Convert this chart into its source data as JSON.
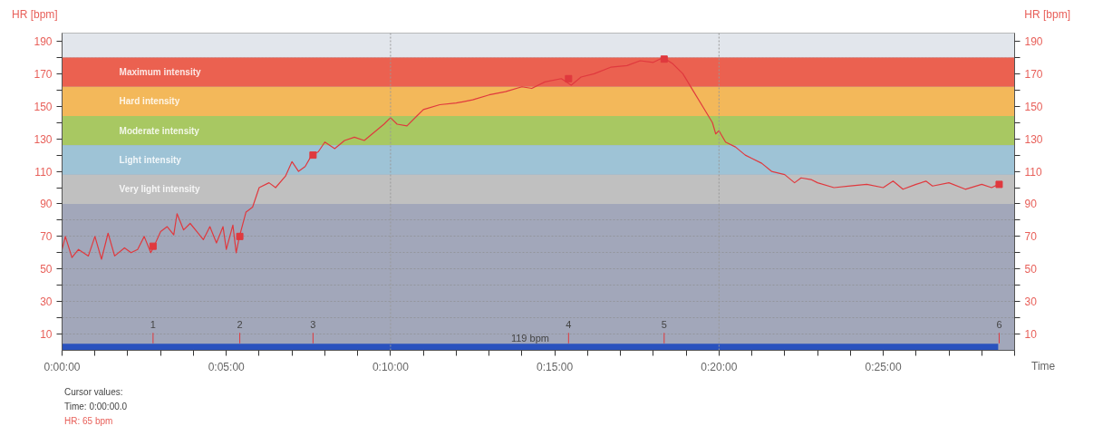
{
  "chart_data": {
    "type": "line",
    "ylabel": "HR [bpm]",
    "y2label": "HR [bpm]",
    "xlabel": "Time",
    "xlim": [
      0,
      29
    ],
    "xticks": [
      {
        "value": 0,
        "label": "0:00:00"
      },
      {
        "value": 1,
        "label": null
      },
      {
        "value": 2,
        "label": null
      },
      {
        "value": 3,
        "label": null
      },
      {
        "value": 4,
        "label": null
      },
      {
        "value": 5,
        "label": "0:05:00"
      },
      {
        "value": 6,
        "label": null
      },
      {
        "value": 7,
        "label": null
      },
      {
        "value": 8,
        "label": null
      },
      {
        "value": 9,
        "label": null
      },
      {
        "value": 10,
        "label": "0:10:00"
      },
      {
        "value": 11,
        "label": null
      },
      {
        "value": 12,
        "label": null
      },
      {
        "value": 13,
        "label": null
      },
      {
        "value": 14,
        "label": null
      },
      {
        "value": 15,
        "label": "0:15:00"
      },
      {
        "value": 16,
        "label": null
      },
      {
        "value": 17,
        "label": null
      },
      {
        "value": 18,
        "label": null
      },
      {
        "value": 19,
        "label": null
      },
      {
        "value": 20,
        "label": "0:20:00"
      },
      {
        "value": 21,
        "label": null
      },
      {
        "value": 22,
        "label": null
      },
      {
        "value": 23,
        "label": null
      },
      {
        "value": 24,
        "label": null
      },
      {
        "value": 25,
        "label": "0:25:00"
      },
      {
        "value": 26,
        "label": null
      },
      {
        "value": 27,
        "label": null
      },
      {
        "value": 28,
        "label": null
      },
      {
        "value": 29,
        "label": null
      }
    ],
    "ylim": [
      0,
      195
    ],
    "yticks": [
      10,
      {
        "value": 20,
        "label": null
      },
      30,
      {
        "value": 40,
        "label": null
      },
      50,
      {
        "value": 60,
        "label": null
      },
      70,
      {
        "value": 80,
        "label": null
      },
      90,
      {
        "value": 100,
        "label": null
      },
      110,
      {
        "value": 120,
        "label": null
      },
      130,
      {
        "value": 140,
        "label": null
      },
      150,
      {
        "value": 160,
        "label": null
      },
      170,
      {
        "value": 180,
        "label": null
      },
      190
    ],
    "y2lim": [
      0,
      195
    ],
    "y2ticks": [
      10,
      {
        "value": 20,
        "label": null
      },
      30,
      {
        "value": 40,
        "label": null
      },
      50,
      {
        "value": 60,
        "label": null
      },
      70,
      {
        "value": 80,
        "label": null
      },
      90,
      {
        "value": 100,
        "label": null
      },
      110,
      {
        "value": 120,
        "label": null
      },
      130,
      {
        "value": 140,
        "label": null
      },
      150,
      {
        "value": 160,
        "label": null
      },
      170,
      {
        "value": 180,
        "label": null
      },
      190
    ],
    "grid": "y",
    "line_style": "solid",
    "marker": "none",
    "series": [
      {
        "color": "#e0393e",
        "x": [
          0,
          0.1,
          0.3,
          0.5,
          0.8,
          1.0,
          1.2,
          1.4,
          1.6,
          1.9,
          2.1,
          2.3,
          2.5,
          2.7,
          2.8,
          3.0,
          3.2,
          3.4,
          3.5,
          3.7,
          3.9,
          4.1,
          4.3,
          4.5,
          4.7,
          4.9,
          5.0,
          5.2,
          5.3,
          5.4,
          5.6,
          5.8,
          6.0,
          6.3,
          6.5,
          6.8,
          7.0,
          7.2,
          7.4,
          7.6,
          7.8,
          8.0,
          8.3,
          8.6,
          8.9,
          9.2,
          9.5,
          9.8,
          10.0,
          10.2,
          10.5,
          10.8,
          11.0,
          11.5,
          12.0,
          12.5,
          13.0,
          13.5,
          14.0,
          14.3,
          14.7,
          15.2,
          15.5,
          15.8,
          16.2,
          16.7,
          17.2,
          17.6,
          18.0,
          18.3,
          18.6,
          18.9,
          19.2,
          19.5,
          19.8,
          19.9,
          20.0,
          20.2,
          20.5,
          20.8,
          21.0,
          21.3,
          21.6,
          22.0,
          22.3,
          22.5,
          22.8,
          23.0,
          23.5,
          24.0,
          24.5,
          25.0,
          25.3,
          25.6,
          26.0,
          26.3,
          26.5,
          27.0,
          27.5,
          28.0,
          28.3,
          28.5
        ],
        "values": [
          62,
          70,
          57,
          62,
          58,
          70,
          56,
          72,
          58,
          63,
          60,
          62,
          70,
          60,
          64,
          73,
          76,
          71,
          84,
          74,
          78,
          73,
          68,
          76,
          66,
          76,
          62,
          77,
          60,
          70,
          85,
          88,
          100,
          103,
          100,
          107,
          116,
          110,
          113,
          120,
          122,
          128,
          124,
          129,
          131,
          129,
          134,
          139,
          143,
          139,
          138,
          144,
          148,
          151,
          152,
          154,
          157,
          159,
          162,
          161,
          165,
          167,
          163,
          168,
          170,
          174,
          175,
          178,
          177,
          180,
          176,
          170,
          160,
          150,
          140,
          133,
          135,
          128,
          125,
          120,
          118,
          115,
          110,
          108,
          103,
          106,
          105,
          103,
          100,
          101,
          102,
          100,
          104,
          99,
          102,
          104,
          101,
          103,
          99,
          102,
          100,
          102
        ]
      },
      {
        "type": "scatter",
        "marker": "square",
        "color": "#e0393e",
        "x": [
          2.77,
          5.41,
          7.64,
          15.42,
          18.33,
          28.53
        ],
        "values": [
          64,
          70,
          120,
          167,
          179,
          102
        ]
      },
      {
        "type": "area",
        "color": "#2a52be",
        "x": [
          0,
          28.5
        ],
        "values": [
          4,
          4
        ]
      }
    ],
    "bands": [
      {
        "axis": "y",
        "from": 180,
        "to": 195,
        "color": "#e2e6ec"
      },
      {
        "axis": "y",
        "from": 162,
        "to": 180,
        "label": "Maximum intensity",
        "color": "#eb6150"
      },
      {
        "axis": "y",
        "from": 144,
        "to": 162,
        "label": "Hard intensity",
        "color": "#f3b85a"
      },
      {
        "axis": "y",
        "from": 126,
        "to": 144,
        "label": "Moderate intensity",
        "color": "#a8c862"
      },
      {
        "axis": "y",
        "from": 108,
        "to": 126,
        "label": "Light intensity",
        "color": "#9ec3d6"
      },
      {
        "axis": "y",
        "from": 90,
        "to": 108,
        "label": "Very light intensity",
        "color": "#c0c0c0"
      }
    ],
    "ref_lines": [
      {
        "axis": "x",
        "value": 10,
        "color": "#999999",
        "line_style": "dotted"
      },
      {
        "axis": "x",
        "value": 20,
        "color": "#999999",
        "line_style": "dotted"
      }
    ],
    "annotations": [
      {
        "text": "1",
        "x": 2.77
      },
      {
        "text": "2",
        "x": 5.41
      },
      {
        "text": "3",
        "x": 7.64
      },
      {
        "text": "4",
        "x": 15.42
      },
      {
        "text": "5",
        "x": 18.33
      },
      {
        "text": "6",
        "x": 28.53
      },
      {
        "text": "119 bpm",
        "x": 14.25,
        "y": 4
      },
      "Cursor values:",
      "Time: 0:00:00.0",
      "HR: 65 bpm"
    ]
  }
}
